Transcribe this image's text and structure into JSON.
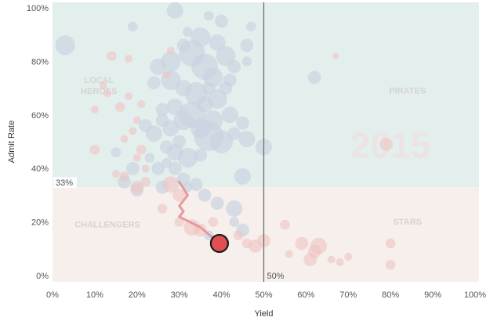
{
  "chart_data": {
    "type": "scatter",
    "xlabel": "Yield",
    "ylabel": "Admit Rate",
    "xlim": [
      0,
      100
    ],
    "ylim": [
      0,
      100
    ],
    "x_ticks": [
      "0%",
      "10%",
      "20%",
      "30%",
      "40%",
      "50%",
      "60%",
      "70%",
      "80%",
      "90%",
      "100%"
    ],
    "y_ticks": [
      "0%",
      "20%",
      "40%",
      "60%",
      "80%",
      "100%"
    ],
    "reference_lines": {
      "x": {
        "value": 50,
        "label": "50%"
      },
      "y": {
        "value": 33,
        "label": "33%"
      }
    },
    "quadrants": [
      {
        "label": "LOCAL HEROES",
        "x": 11,
        "y": 72
      },
      {
        "label": "PIRATES",
        "x": 84,
        "y": 68
      },
      {
        "label": "CHALLENGERS",
        "x": 13,
        "y": 18
      },
      {
        "label": "STARS",
        "x": 84,
        "y": 19
      }
    ],
    "watermark": "2015",
    "colors": {
      "upper_band": "#e3efed",
      "lower_band": "#f6efec",
      "highlight": "#e04f52",
      "trail": "#e49296",
      "faded_blue": "#cbd4e1",
      "faded_red": "#eec3c3"
    },
    "highlight_point": {
      "x": 39.5,
      "y": 12
    },
    "trail": [
      [
        30,
        35
      ],
      [
        32,
        30
      ],
      [
        30,
        26
      ],
      [
        31,
        24
      ],
      [
        30,
        22
      ],
      [
        35,
        18
      ],
      [
        39.5,
        12
      ]
    ],
    "bubbles": [
      [
        3,
        86,
        3,
        "b"
      ],
      [
        19,
        93,
        1.5,
        "b"
      ],
      [
        29,
        99,
        2.5,
        "b"
      ],
      [
        37,
        97,
        1.5,
        "b"
      ],
      [
        40,
        95,
        2,
        "b"
      ],
      [
        46,
        86,
        2,
        "b"
      ],
      [
        47,
        93,
        1.5,
        "b"
      ],
      [
        46,
        80,
        1.5,
        "b"
      ],
      [
        25,
        78,
        2.5,
        "b"
      ],
      [
        28,
        80,
        3,
        "b"
      ],
      [
        31,
        86,
        2,
        "b"
      ],
      [
        33,
        83,
        4,
        "b"
      ],
      [
        35,
        89,
        3,
        "b"
      ],
      [
        36,
        78,
        4,
        "b"
      ],
      [
        38,
        74,
        3,
        "b"
      ],
      [
        41,
        82,
        3,
        "b"
      ],
      [
        43,
        78,
        2,
        "b"
      ],
      [
        24,
        72,
        2,
        "b"
      ],
      [
        28,
        73,
        3,
        "b"
      ],
      [
        31,
        70,
        2.5,
        "b"
      ],
      [
        34,
        68,
        3.5,
        "b"
      ],
      [
        36,
        64,
        2.5,
        "b"
      ],
      [
        37,
        70,
        2,
        "b"
      ],
      [
        39,
        66,
        3,
        "b"
      ],
      [
        41,
        70,
        2,
        "b"
      ],
      [
        42,
        60,
        2.5,
        "b"
      ],
      [
        45,
        57,
        2,
        "b"
      ],
      [
        26,
        62,
        2,
        "b"
      ],
      [
        29,
        63,
        2.5,
        "b"
      ],
      [
        31,
        58,
        3,
        "b"
      ],
      [
        33,
        60,
        4,
        "b"
      ],
      [
        35,
        55,
        3,
        "b"
      ],
      [
        37,
        52,
        4.5,
        "b"
      ],
      [
        38,
        58,
        3,
        "b"
      ],
      [
        40,
        50,
        3.5,
        "b"
      ],
      [
        43,
        53,
        2,
        "b"
      ],
      [
        46,
        51,
        2.5,
        "b"
      ],
      [
        50,
        48,
        2.5,
        "b"
      ],
      [
        22,
        56,
        2,
        "b"
      ],
      [
        24,
        53,
        2.5,
        "b"
      ],
      [
        26,
        58,
        2,
        "b"
      ],
      [
        28,
        55,
        2.5,
        "b"
      ],
      [
        30,
        50,
        2,
        "b"
      ],
      [
        27,
        48,
        2,
        "b"
      ],
      [
        29,
        46,
        2.5,
        "b"
      ],
      [
        32,
        44,
        3,
        "b"
      ],
      [
        35,
        45,
        2,
        "b"
      ],
      [
        23,
        44,
        1.5,
        "b"
      ],
      [
        25,
        40,
        2,
        "b"
      ],
      [
        27,
        42,
        1.5,
        "b"
      ],
      [
        29,
        40,
        2,
        "b"
      ],
      [
        31,
        36,
        2,
        "b"
      ],
      [
        34,
        34,
        2,
        "b"
      ],
      [
        45,
        37,
        2.5,
        "b"
      ],
      [
        19,
        40,
        2,
        "b"
      ],
      [
        17,
        35,
        2,
        "b"
      ],
      [
        15,
        46,
        1.5,
        "b"
      ],
      [
        20,
        32,
        2,
        "b"
      ],
      [
        26,
        33,
        2,
        "b"
      ],
      [
        32,
        33,
        1.5,
        "b"
      ],
      [
        36,
        30,
        2,
        "b"
      ],
      [
        39,
        27,
        2,
        "b"
      ],
      [
        43,
        25,
        2.5,
        "b"
      ],
      [
        43,
        20,
        1.5,
        "b"
      ],
      [
        45,
        17,
        2,
        "b"
      ],
      [
        37,
        15,
        1.5,
        "b"
      ],
      [
        62,
        74,
        2,
        "b"
      ],
      [
        39,
        87,
        2.5,
        "b"
      ],
      [
        32,
        91,
        1.5,
        "b"
      ],
      [
        42,
        73,
        2,
        "b"
      ],
      [
        13,
        68,
        1.2,
        "r"
      ],
      [
        10,
        62,
        1.2,
        "r"
      ],
      [
        12,
        71,
        1.2,
        "r"
      ],
      [
        14,
        82,
        1.5,
        "r"
      ],
      [
        18,
        81,
        1.2,
        "r"
      ],
      [
        18,
        67,
        1.2,
        "r"
      ],
      [
        16,
        63,
        1.5,
        "r"
      ],
      [
        21,
        64,
        1.2,
        "r"
      ],
      [
        20,
        58,
        1.2,
        "r"
      ],
      [
        19,
        54,
        1.2,
        "r"
      ],
      [
        17,
        51,
        1.2,
        "r"
      ],
      [
        21,
        47,
        1.5,
        "r"
      ],
      [
        20,
        44,
        1.2,
        "r"
      ],
      [
        22,
        40,
        1.2,
        "r"
      ],
      [
        17,
        37,
        1.5,
        "r"
      ],
      [
        15,
        38,
        1.2,
        "r"
      ],
      [
        10,
        47,
        1.5,
        "r"
      ],
      [
        22,
        35,
        1.5,
        "r"
      ],
      [
        20,
        33,
        2,
        "r"
      ],
      [
        28,
        34,
        2.5,
        "r"
      ],
      [
        30,
        30,
        2,
        "r"
      ],
      [
        26,
        25,
        1.5,
        "r"
      ],
      [
        30,
        20,
        1.5,
        "r"
      ],
      [
        33,
        18,
        2.5,
        "r"
      ],
      [
        35,
        17,
        2,
        "r"
      ],
      [
        38,
        20,
        1.5,
        "r"
      ],
      [
        44,
        15,
        1.5,
        "r"
      ],
      [
        46,
        12,
        1.5,
        "r"
      ],
      [
        48,
        11,
        2,
        "r"
      ],
      [
        50,
        13,
        2,
        "r"
      ],
      [
        55,
        19,
        1.5,
        "r"
      ],
      [
        56,
        8,
        1.2,
        "r"
      ],
      [
        59,
        12,
        2,
        "r"
      ],
      [
        62,
        9,
        2,
        "r"
      ],
      [
        63,
        11,
        2.5,
        "r"
      ],
      [
        61,
        6,
        2,
        "r"
      ],
      [
        66,
        6,
        1.2,
        "r"
      ],
      [
        68,
        5,
        1.2,
        "r"
      ],
      [
        70,
        7,
        1.2,
        "r"
      ],
      [
        80,
        4,
        1.5,
        "r"
      ],
      [
        80,
        12,
        1.5,
        "r"
      ],
      [
        79,
        49,
        2,
        "r"
      ],
      [
        67,
        82,
        1,
        "r"
      ],
      [
        27,
        75,
        1.2,
        "r"
      ],
      [
        28,
        84,
        1.2,
        "r"
      ]
    ]
  }
}
